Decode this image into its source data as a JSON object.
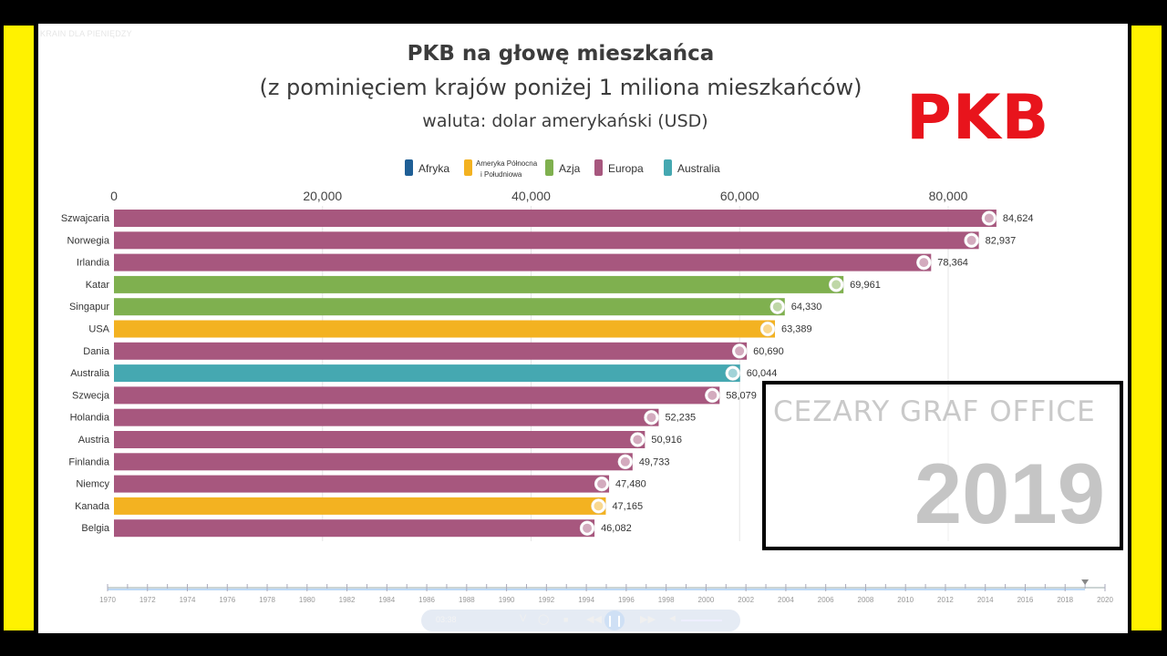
{
  "channel_label": "KRAIN DLA PIENIĘDZY",
  "overlay": {
    "headline": "PKB",
    "watermark": "CEZARY GRAF OFFICE",
    "year": "2019"
  },
  "player": {
    "time": "03:38",
    "icons": [
      "volume-icon",
      "settings-icon",
      "stop-icon",
      "rewind-icon",
      "pause-icon",
      "forward-icon",
      "speaker-icon"
    ]
  },
  "colors": {
    "Afryka": "#1f5f96",
    "Ameryka Północna i Południowa": "#f3b221",
    "Azja": "#7fb04f",
    "Europa": "#a7577e",
    "Australia": "#45a8b1"
  },
  "chart_data": {
    "type": "bar",
    "orientation": "horizontal",
    "title": "PKB na głowę mieszkańca",
    "subtitle": "(z pominięciem krajów poniżej 1 miliona mieszkańców)",
    "subtitle2": "waluta: dolar amerykański (USD)",
    "xlim": [
      0,
      90000
    ],
    "xticks": [
      0,
      20000,
      40000,
      60000,
      80000
    ],
    "xtick_labels": [
      "0",
      "20,000",
      "40,000",
      "60,000",
      "80,000"
    ],
    "legend": [
      {
        "name": "Afryka"
      },
      {
        "name": "Ameryka Północna",
        "name2": "i Południowa"
      },
      {
        "name": "Azja"
      },
      {
        "name": "Europa"
      },
      {
        "name": "Australia"
      }
    ],
    "categories": [
      "Szwajcaria",
      "Norwegia",
      "Irlandia",
      "Katar",
      "Singapur",
      "USA",
      "Dania",
      "Australia",
      "Szwecja",
      "Holandia",
      "Austria",
      "Finlandia",
      "Niemcy",
      "Kanada",
      "Belgia"
    ],
    "values": [
      84624,
      82937,
      78364,
      69961,
      64330,
      63389,
      60690,
      60044,
      58079,
      52235,
      50916,
      49733,
      47480,
      47165,
      46082
    ],
    "value_labels": [
      "84,624",
      "82,937",
      "78,364",
      "69,961",
      "64,330",
      "63,389",
      "60,690",
      "60,044",
      "58,079",
      "52,235",
      "50,916",
      "49,733",
      "47,480",
      "47,165",
      "46,082"
    ],
    "regions": [
      "Europa",
      "Europa",
      "Europa",
      "Azja",
      "Azja",
      "Ameryka Północna i Południowa",
      "Europa",
      "Australia",
      "Europa",
      "Europa",
      "Europa",
      "Europa",
      "Europa",
      "Ameryka Północna i Południowa",
      "Europa"
    ],
    "timeline": {
      "start": 1970,
      "end": 2020,
      "current": 2019,
      "labels": [
        "1970",
        "1972",
        "1974",
        "1976",
        "1978",
        "1980",
        "1982",
        "1984",
        "1986",
        "1988",
        "1990",
        "1992",
        "1994",
        "1996",
        "1998",
        "2000",
        "2002",
        "2004",
        "2006",
        "2008",
        "2010",
        "2012",
        "2014",
        "2016",
        "2018",
        "2020"
      ]
    }
  }
}
